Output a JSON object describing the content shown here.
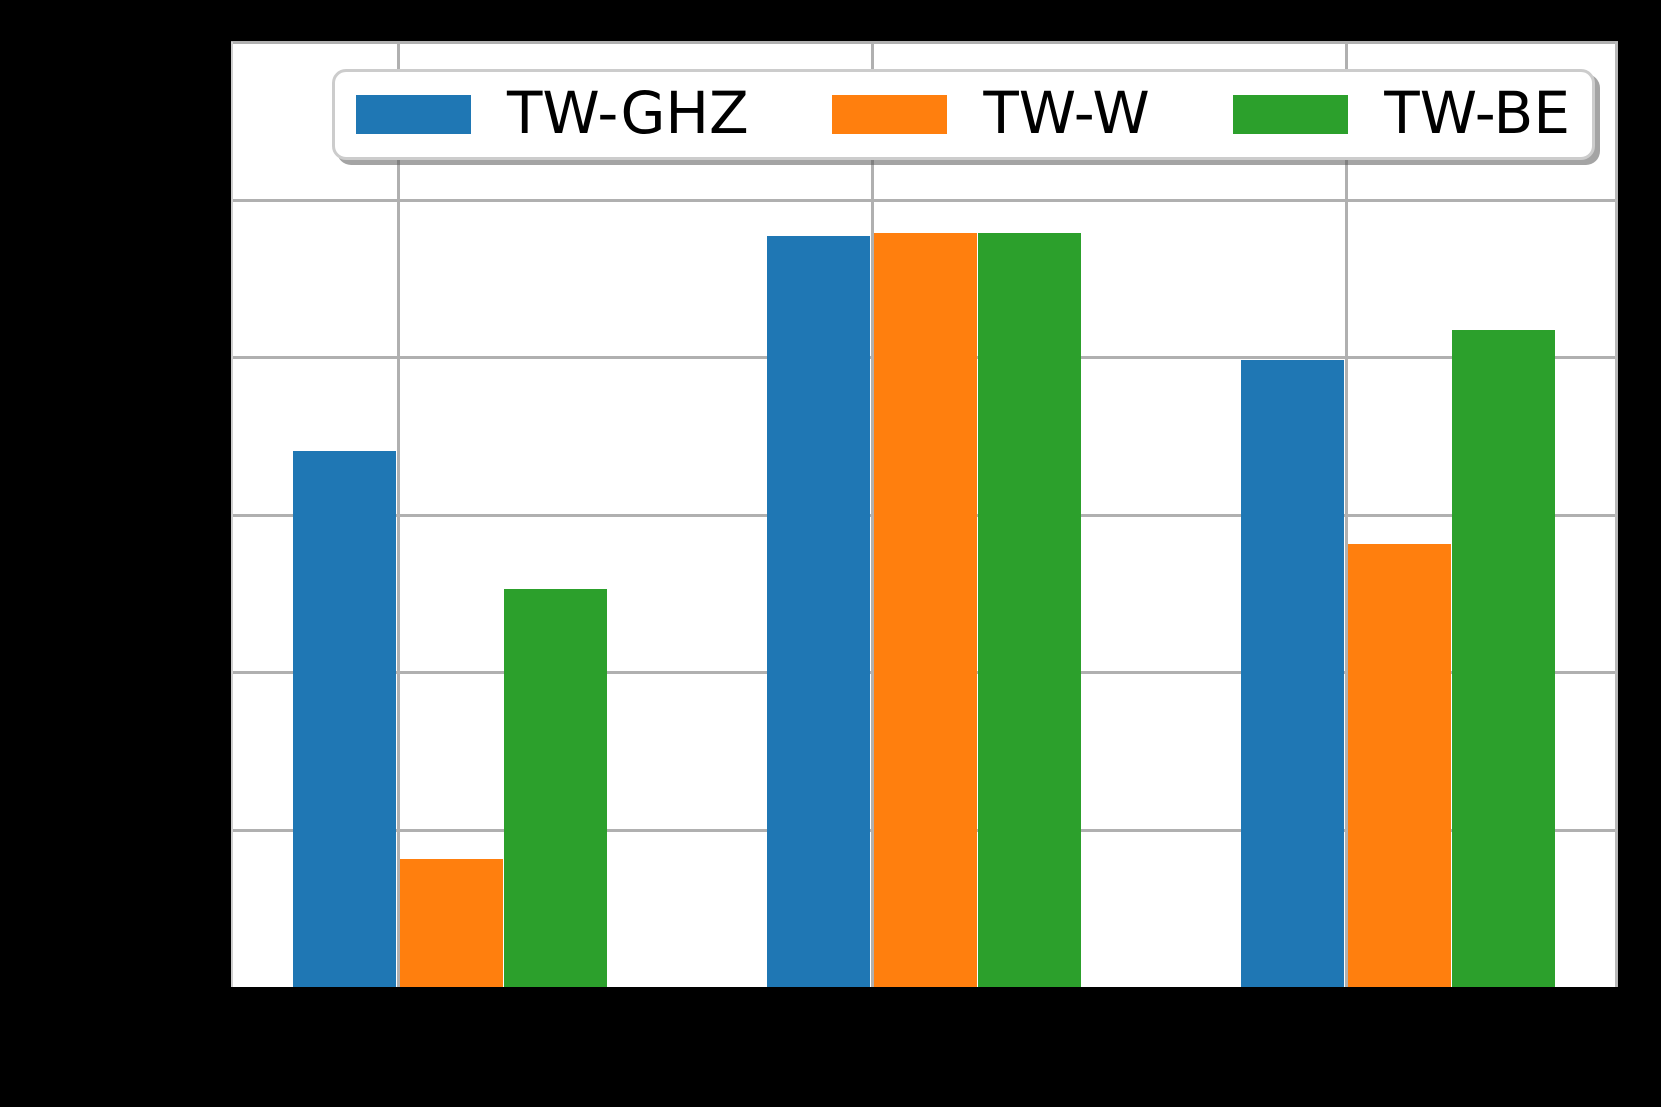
{
  "figure": {
    "background_color": "#000000",
    "plot_background_color": "#ffffff",
    "grid_color": "#b0b0b0"
  },
  "legend": {
    "items": [
      {
        "label": "TW-GHZ",
        "color": "#1f77b4",
        "swatch": "blue-square"
      },
      {
        "label": "TW-W",
        "color": "#ff7f0e",
        "swatch": "orange-square"
      },
      {
        "label": "TW-BE",
        "color": "#2ca02c",
        "swatch": "green-square"
      }
    ]
  },
  "chart_data": {
    "type": "bar",
    "title": "",
    "xlabel": "",
    "ylabel": "",
    "categories": [
      "",
      "",
      ""
    ],
    "series": [
      {
        "name": "TW-GHZ",
        "color": "#1f77b4",
        "values": [
          3.4,
          4.77,
          3.98
        ]
      },
      {
        "name": "TW-W",
        "color": "#ff7f0e",
        "values": [
          0.81,
          4.79,
          2.81
        ]
      },
      {
        "name": "TW-BE",
        "color": "#2ca02c",
        "values": [
          2.53,
          4.79,
          4.17
        ]
      }
    ],
    "value_scale": "gridline-intervals (axis tick labels not visible in image)",
    "ylim": [
      0,
      6
    ],
    "y_gridline_step": 1,
    "grid": true,
    "legend_position": "upper center",
    "tick_labels_visible": false
  }
}
